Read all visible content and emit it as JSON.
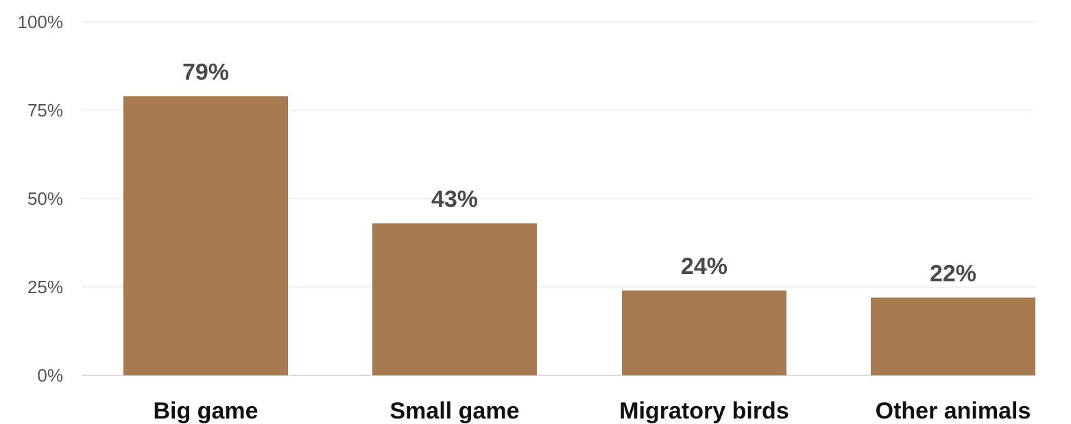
{
  "chart_data": {
    "type": "bar",
    "title": "",
    "xlabel": "",
    "ylabel": "",
    "categories": [
      "Big game",
      "Small game",
      "Migratory birds",
      "Other animals"
    ],
    "values": [
      79,
      43,
      24,
      22
    ],
    "data_labels": [
      "79%",
      "43%",
      "24%",
      "22%"
    ],
    "ylim": [
      0,
      100
    ],
    "yticks": [
      0,
      25,
      50,
      75,
      100
    ],
    "ytick_labels": [
      "0%",
      "25%",
      "50%",
      "75%",
      "100%"
    ],
    "grid": true,
    "legend": "none",
    "colors": {
      "bar": "#a87a50",
      "data_label": "#4a4a4a",
      "category_label": "#111111",
      "tick_label": "#555555",
      "grid": "#f1f1f1"
    }
  }
}
